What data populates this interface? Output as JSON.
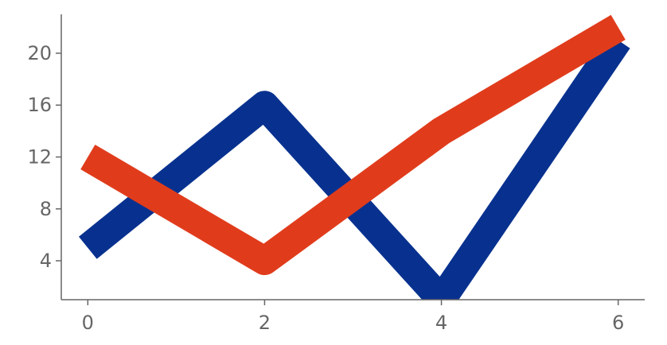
{
  "chart_data": {
    "type": "line",
    "title": "",
    "xlabel": "",
    "ylabel": "",
    "xlim": [
      -0.3,
      6.3
    ],
    "ylim": [
      1,
      23
    ],
    "grid": false,
    "x_ticks": [
      0,
      2,
      4,
      6
    ],
    "x_tick_labels": [
      "0",
      "2",
      "4",
      "6"
    ],
    "y_ticks": [
      4,
      8,
      12,
      16,
      20
    ],
    "y_tick_labels": [
      "4",
      "8",
      "12",
      "16",
      "20"
    ],
    "series": [
      {
        "color": "#08318f",
        "x": [
          0,
          2,
          4,
          6
        ],
        "y": [
          5,
          16,
          1,
          21
        ]
      },
      {
        "color": "#e03c1c",
        "x": [
          0,
          2,
          4,
          6
        ],
        "y": [
          12,
          4,
          14,
          22
        ]
      }
    ]
  }
}
